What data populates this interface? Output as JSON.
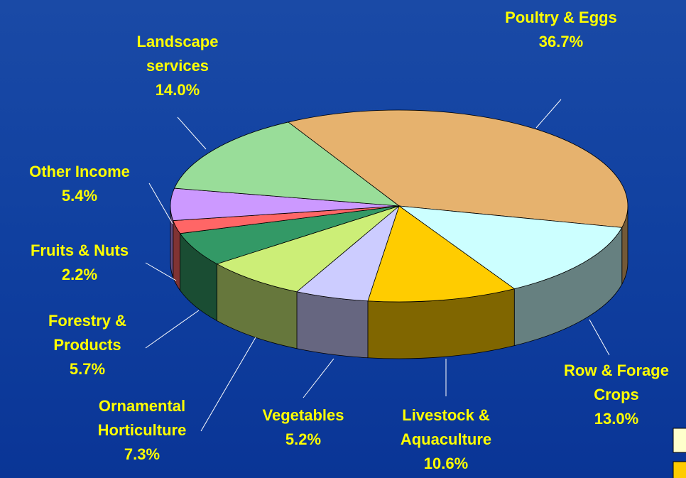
{
  "chart_data": {
    "type": "pie3d",
    "categories": [
      "Poultry & Eggs",
      "Row & Forage Crops",
      "Livestock & Aquaculture",
      "Vegetables",
      "Ornamental Horticulture",
      "Forestry & Products",
      "Fruits & Nuts",
      "Other Income",
      "Landscape services"
    ],
    "values": [
      36.7,
      13.0,
      10.6,
      5.2,
      7.3,
      5.7,
      2.2,
      5.4,
      14.0
    ],
    "value_labels": [
      "36.7%",
      "13.0%",
      "10.6%",
      "5.2%",
      "7.3%",
      "5.7%",
      "2.2%",
      "5.4%",
      "14.0%"
    ],
    "colors": [
      "#e6b26e",
      "#ccffff",
      "#ffcc00",
      "#ccccff",
      "#ccee77",
      "#339966",
      "#ff6666",
      "#cc99ff",
      "#99dd99"
    ]
  }
}
